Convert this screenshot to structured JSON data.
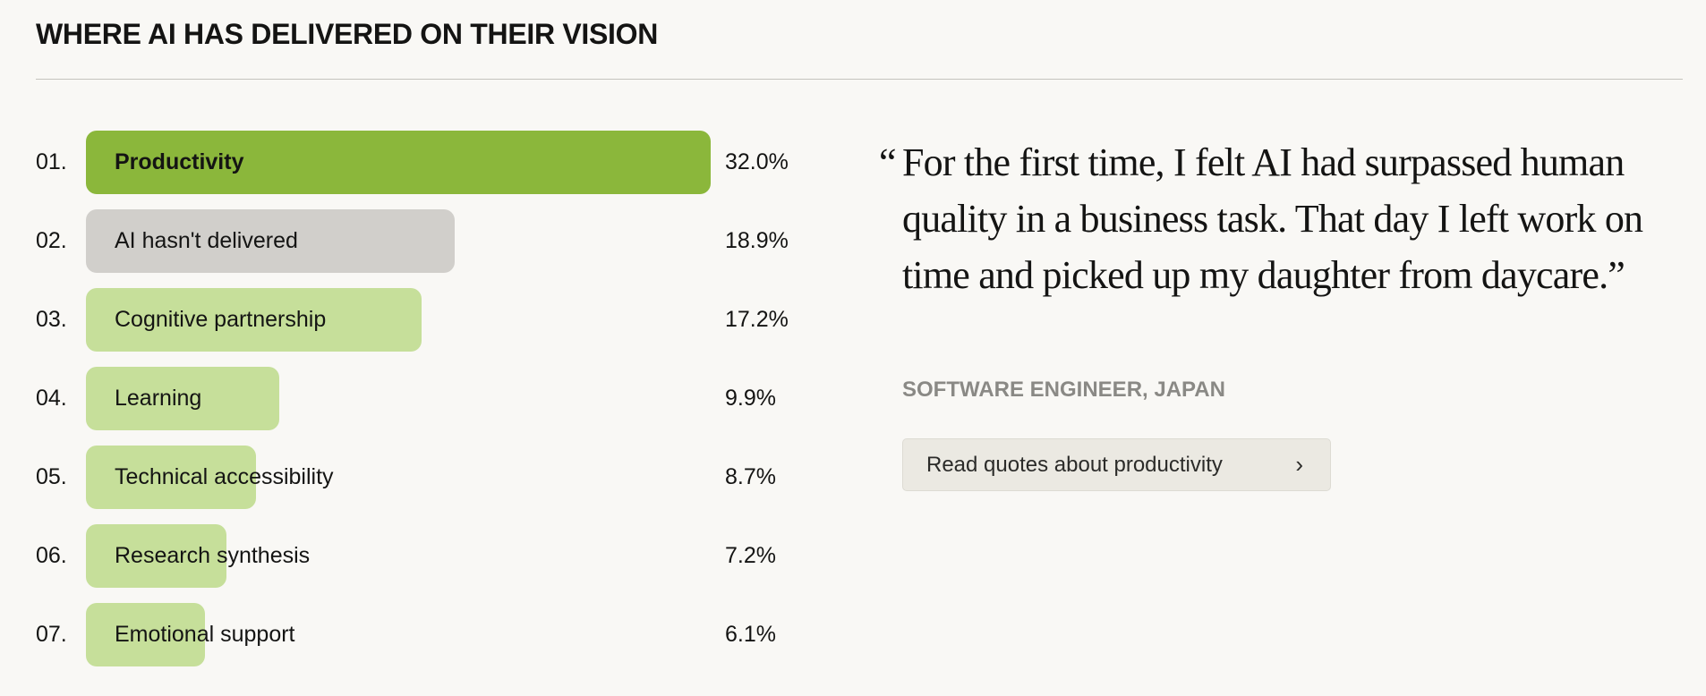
{
  "title": "WHERE AI HAS DELIVERED ON THEIR VISION",
  "chart_data": {
    "type": "bar",
    "orientation": "horizontal",
    "title": "WHERE AI HAS DELIVERED ON THEIR VISION",
    "categories": [
      "Productivity",
      "AI hasn't delivered",
      "Cognitive partnership",
      "Learning",
      "Technical accessibility",
      "Research synthesis",
      "Emotional support"
    ],
    "ranks": [
      "01.",
      "02.",
      "03.",
      "04.",
      "05.",
      "06.",
      "07."
    ],
    "values": [
      32.0,
      18.9,
      17.2,
      9.9,
      8.7,
      7.2,
      6.1
    ],
    "labels": [
      "32.0%",
      "18.9%",
      "17.2%",
      "9.9%",
      "8.7%",
      "7.2%",
      "6.1%"
    ],
    "unit": "%",
    "xlim": [
      0,
      32.0
    ],
    "colors": {
      "highlight": "#8bb73b",
      "neutral": "#d1cfcb",
      "default": "#c6df9a"
    }
  },
  "quote": {
    "open_mark": "“",
    "text": "For the first time, I felt AI had surpassed human quality in a business task. That day I left work on time and picked up my daughter from daycare.”",
    "attribution": "SOFTWARE ENGINEER, JAPAN",
    "button_label": "Read quotes about productivity",
    "button_icon": "chevron-right-icon"
  }
}
